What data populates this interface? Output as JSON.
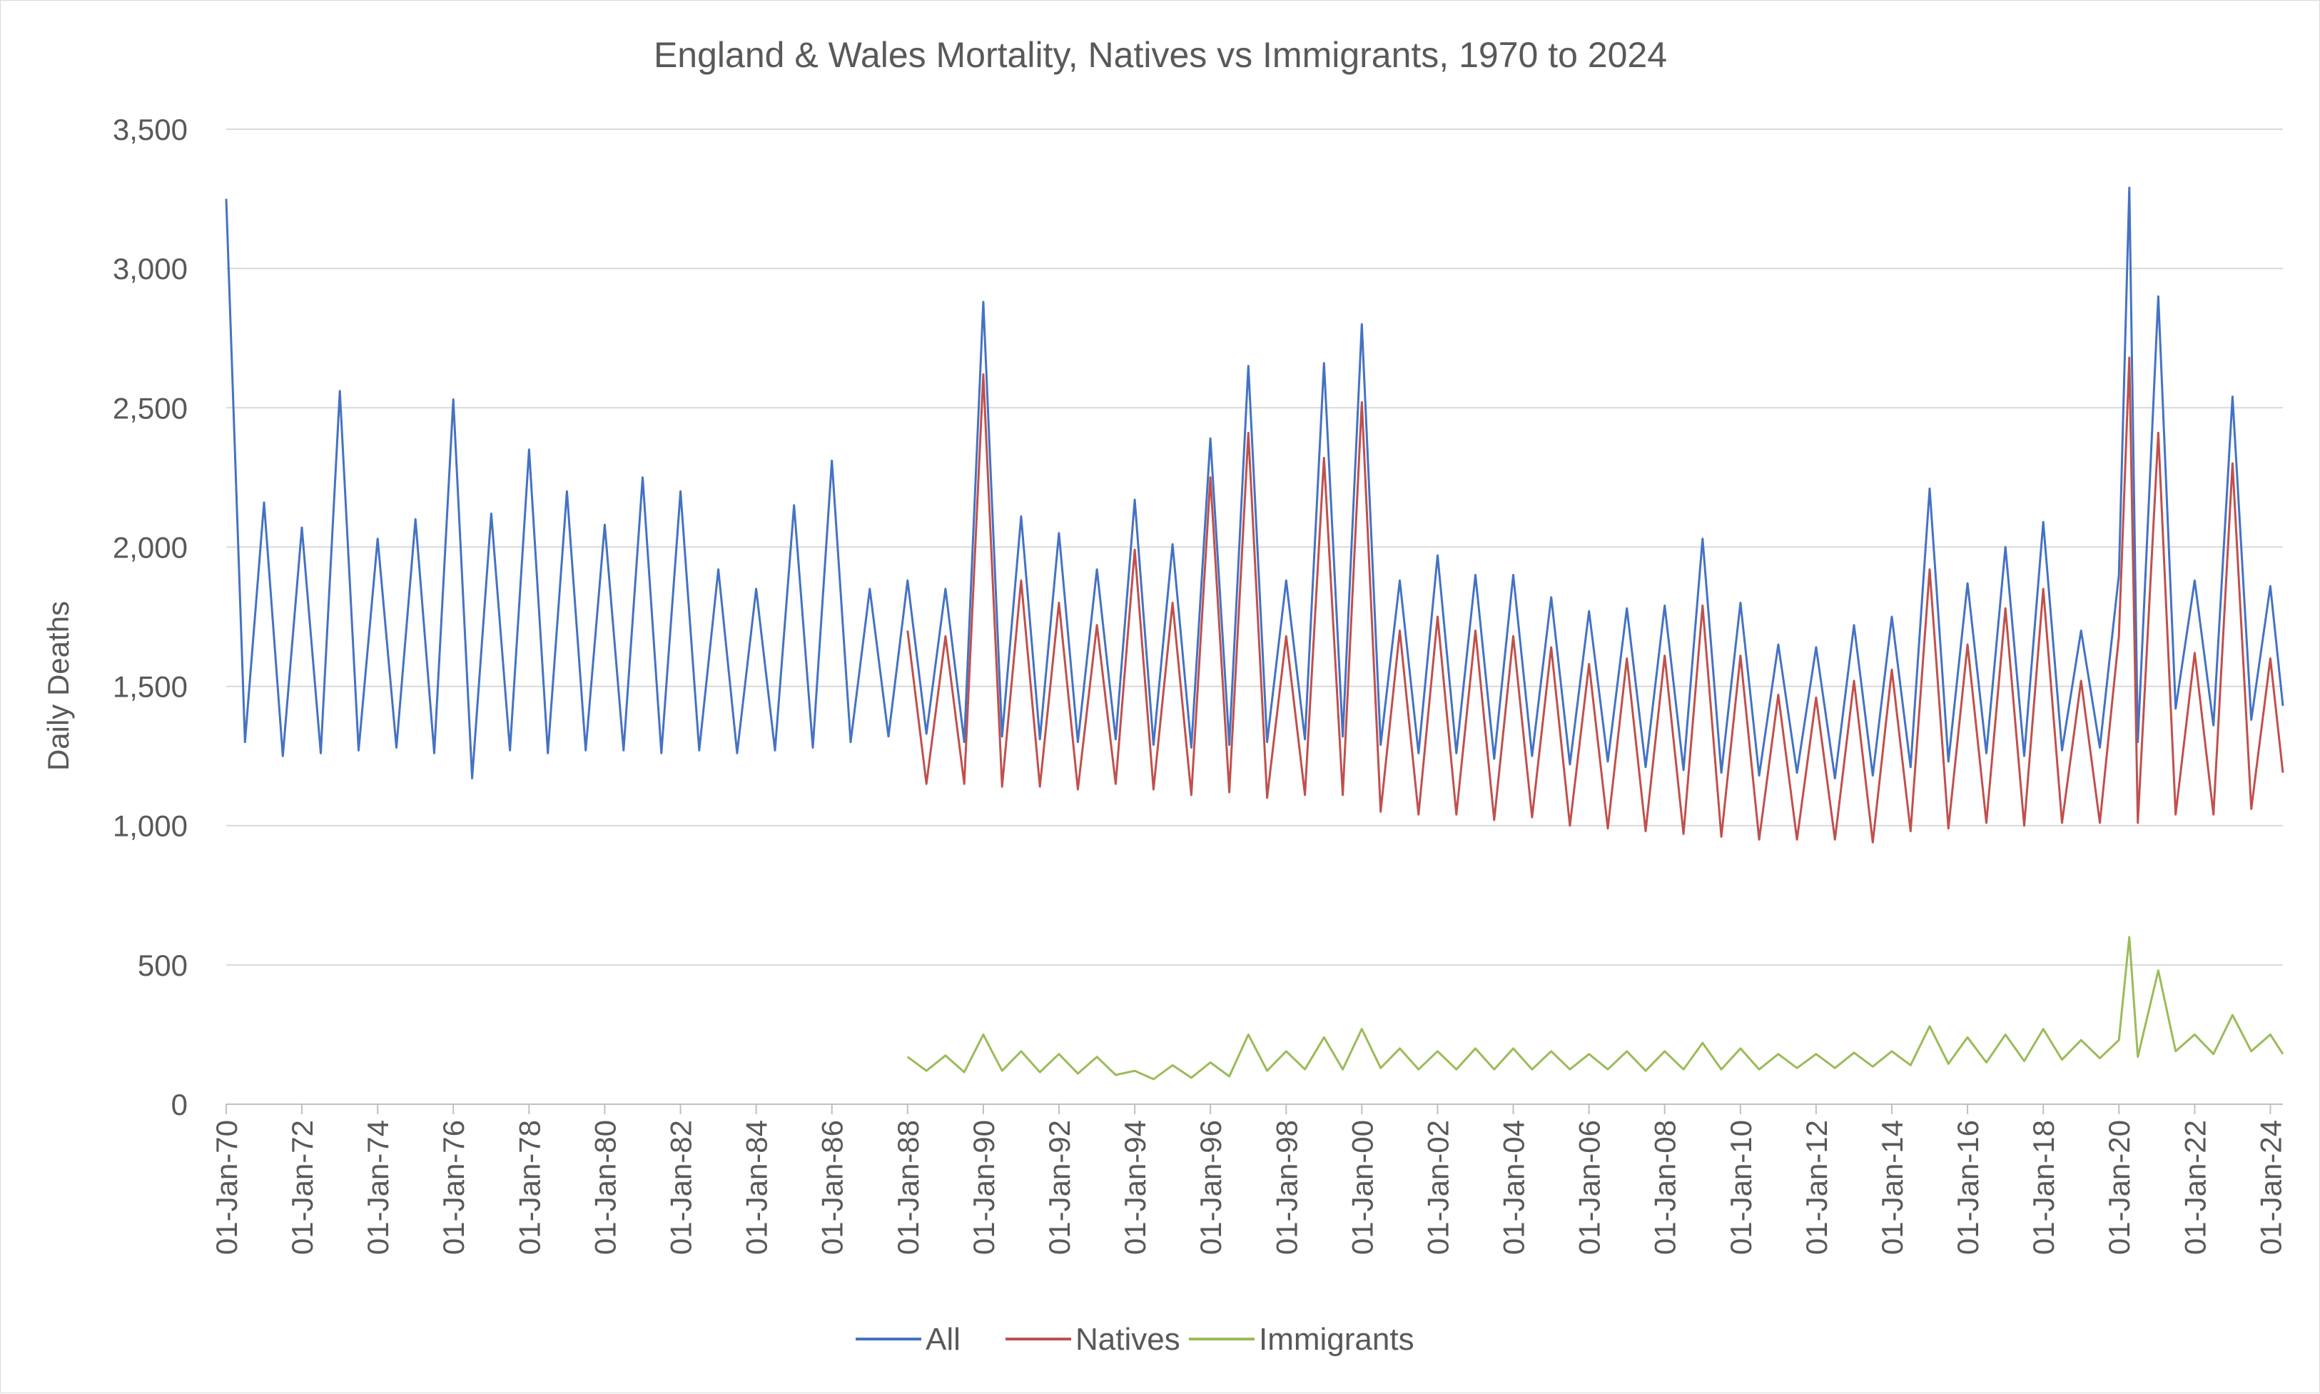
{
  "chart_data": {
    "type": "line",
    "title": "England & Wales Mortality, Natives vs Immigrants, 1970 to 2024",
    "ylabel": "Daily Deaths",
    "xlabel": "",
    "x_range": [
      "1970-01-01",
      "2024-05-01"
    ],
    "ylim": [
      0,
      3500
    ],
    "y_ticks": [
      0,
      500,
      1000,
      1500,
      2000,
      2500,
      3000,
      3500
    ],
    "y_tick_labels": [
      "0",
      "500",
      "1,000",
      "1,500",
      "2,000",
      "2,500",
      "3,000",
      "3,500"
    ],
    "x_tick_labels": [
      "01-Jan-70",
      "01-Jan-72",
      "01-Jan-74",
      "01-Jan-76",
      "01-Jan-78",
      "01-Jan-80",
      "01-Jan-82",
      "01-Jan-84",
      "01-Jan-86",
      "01-Jan-88",
      "01-Jan-90",
      "01-Jan-92",
      "01-Jan-94",
      "01-Jan-96",
      "01-Jan-98",
      "01-Jan-00",
      "01-Jan-02",
      "01-Jan-04",
      "01-Jan-06",
      "01-Jan-08",
      "01-Jan-10",
      "01-Jan-12",
      "01-Jan-14",
      "01-Jan-16",
      "01-Jan-18",
      "01-Jan-20",
      "01-Jan-22",
      "01-Jan-24"
    ],
    "grid": true,
    "legend_position": "bottom",
    "series": [
      {
        "name": "All",
        "color": "#4472c4",
        "x": [
          "1970-01-01",
          "1970-07-01",
          "1971-01-01",
          "1971-07-01",
          "1972-01-01",
          "1972-07-01",
          "1973-01-01",
          "1973-07-01",
          "1974-01-01",
          "1974-07-01",
          "1975-01-01",
          "1975-07-01",
          "1976-01-01",
          "1976-07-01",
          "1977-01-01",
          "1977-07-01",
          "1978-01-01",
          "1978-07-01",
          "1979-01-01",
          "1979-07-01",
          "1980-01-01",
          "1980-07-01",
          "1981-01-01",
          "1981-07-01",
          "1982-01-01",
          "1982-07-01",
          "1983-01-01",
          "1983-07-01",
          "1984-01-01",
          "1984-07-01",
          "1985-01-01",
          "1985-07-01",
          "1986-01-01",
          "1986-07-01",
          "1987-01-01",
          "1987-07-01",
          "1988-01-01",
          "1988-07-01",
          "1989-01-01",
          "1989-07-01",
          "1990-01-01",
          "1990-07-01",
          "1991-01-01",
          "1991-07-01",
          "1992-01-01",
          "1992-07-01",
          "1993-01-01",
          "1993-07-01",
          "1994-01-01",
          "1994-07-01",
          "1995-01-01",
          "1995-07-01",
          "1996-01-01",
          "1996-07-01",
          "1997-01-01",
          "1997-07-01",
          "1998-01-01",
          "1998-07-01",
          "1999-01-01",
          "1999-07-01",
          "2000-01-01",
          "2000-07-01",
          "2001-01-01",
          "2001-07-01",
          "2002-01-01",
          "2002-07-01",
          "2003-01-01",
          "2003-07-01",
          "2004-01-01",
          "2004-07-01",
          "2005-01-01",
          "2005-07-01",
          "2006-01-01",
          "2006-07-01",
          "2007-01-01",
          "2007-07-01",
          "2008-01-01",
          "2008-07-01",
          "2009-01-01",
          "2009-07-01",
          "2010-01-01",
          "2010-07-01",
          "2011-01-01",
          "2011-07-01",
          "2012-01-01",
          "2012-07-01",
          "2013-01-01",
          "2013-07-01",
          "2014-01-01",
          "2014-07-01",
          "2015-01-01",
          "2015-07-01",
          "2016-01-01",
          "2016-07-01",
          "2017-01-01",
          "2017-07-01",
          "2018-01-01",
          "2018-07-01",
          "2019-01-01",
          "2019-07-01",
          "2020-01-01",
          "2020-04-10",
          "2020-07-01",
          "2021-01-15",
          "2021-07-01",
          "2022-01-01",
          "2022-07-01",
          "2023-01-01",
          "2023-07-01",
          "2024-01-01",
          "2024-05-01"
        ],
        "y": [
          3250,
          1300,
          2160,
          1250,
          2070,
          1260,
          2560,
          1270,
          2030,
          1280,
          2100,
          1260,
          2530,
          1170,
          2120,
          1270,
          2350,
          1260,
          2200,
          1270,
          2080,
          1270,
          2250,
          1260,
          2200,
          1270,
          1920,
          1260,
          1850,
          1270,
          2150,
          1280,
          2310,
          1300,
          1850,
          1320,
          1880,
          1330,
          1850,
          1300,
          2880,
          1320,
          2110,
          1310,
          2050,
          1300,
          1920,
          1310,
          2170,
          1290,
          2010,
          1280,
          2390,
          1290,
          2650,
          1300,
          1880,
          1310,
          2660,
          1320,
          2800,
          1290,
          1880,
          1260,
          1970,
          1260,
          1900,
          1240,
          1900,
          1250,
          1820,
          1220,
          1770,
          1230,
          1780,
          1210,
          1790,
          1200,
          2030,
          1190,
          1800,
          1180,
          1650,
          1190,
          1640,
          1170,
          1720,
          1180,
          1750,
          1210,
          2210,
          1230,
          1870,
          1260,
          2000,
          1250,
          2090,
          1270,
          1700,
          1280,
          1900,
          3290,
          1300,
          2900,
          1420,
          1880,
          1360,
          2540,
          1380,
          1860,
          1430
        ]
      },
      {
        "name": "Natives",
        "color": "#c0504d",
        "x": [
          "1988-01-01",
          "1988-07-01",
          "1989-01-01",
          "1989-07-01",
          "1990-01-01",
          "1990-07-01",
          "1991-01-01",
          "1991-07-01",
          "1992-01-01",
          "1992-07-01",
          "1993-01-01",
          "1993-07-01",
          "1994-01-01",
          "1994-07-01",
          "1995-01-01",
          "1995-07-01",
          "1996-01-01",
          "1996-07-01",
          "1997-01-01",
          "1997-07-01",
          "1998-01-01",
          "1998-07-01",
          "1999-01-01",
          "1999-07-01",
          "2000-01-01",
          "2000-07-01",
          "2001-01-01",
          "2001-07-01",
          "2002-01-01",
          "2002-07-01",
          "2003-01-01",
          "2003-07-01",
          "2004-01-01",
          "2004-07-01",
          "2005-01-01",
          "2005-07-01",
          "2006-01-01",
          "2006-07-01",
          "2007-01-01",
          "2007-07-01",
          "2008-01-01",
          "2008-07-01",
          "2009-01-01",
          "2009-07-01",
          "2010-01-01",
          "2010-07-01",
          "2011-01-01",
          "2011-07-01",
          "2012-01-01",
          "2012-07-01",
          "2013-01-01",
          "2013-07-01",
          "2014-01-01",
          "2014-07-01",
          "2015-01-01",
          "2015-07-01",
          "2016-01-01",
          "2016-07-01",
          "2017-01-01",
          "2017-07-01",
          "2018-01-01",
          "2018-07-01",
          "2019-01-01",
          "2019-07-01",
          "2020-01-01",
          "2020-04-10",
          "2020-07-01",
          "2021-01-15",
          "2021-07-01",
          "2022-01-01",
          "2022-07-01",
          "2023-01-01",
          "2023-07-01",
          "2024-01-01",
          "2024-05-01"
        ],
        "y": [
          1700,
          1150,
          1680,
          1150,
          2620,
          1140,
          1880,
          1140,
          1800,
          1130,
          1720,
          1150,
          1990,
          1130,
          1800,
          1110,
          2250,
          1120,
          2410,
          1100,
          1680,
          1110,
          2320,
          1110,
          2520,
          1050,
          1700,
          1040,
          1750,
          1040,
          1700,
          1020,
          1680,
          1030,
          1640,
          1000,
          1580,
          990,
          1600,
          980,
          1610,
          970,
          1790,
          960,
          1610,
          950,
          1470,
          950,
          1460,
          950,
          1520,
          940,
          1560,
          980,
          1920,
          990,
          1650,
          1010,
          1780,
          1000,
          1850,
          1010,
          1520,
          1010,
          1680,
          2680,
          1010,
          2410,
          1040,
          1620,
          1040,
          2300,
          1060,
          1600,
          1190
        ]
      },
      {
        "name": "Immigrants",
        "color": "#9bbb59",
        "x": [
          "1988-01-01",
          "1988-07-01",
          "1989-01-01",
          "1989-07-01",
          "1990-01-01",
          "1990-07-01",
          "1991-01-01",
          "1991-07-01",
          "1992-01-01",
          "1992-07-01",
          "1993-01-01",
          "1993-07-01",
          "1994-01-01",
          "1994-07-01",
          "1995-01-01",
          "1995-07-01",
          "1996-01-01",
          "1996-07-01",
          "1997-01-01",
          "1997-07-01",
          "1998-01-01",
          "1998-07-01",
          "1999-01-01",
          "1999-07-01",
          "2000-01-01",
          "2000-07-01",
          "2001-01-01",
          "2001-07-01",
          "2002-01-01",
          "2002-07-01",
          "2003-01-01",
          "2003-07-01",
          "2004-01-01",
          "2004-07-01",
          "2005-01-01",
          "2005-07-01",
          "2006-01-01",
          "2006-07-01",
          "2007-01-01",
          "2007-07-01",
          "2008-01-01",
          "2008-07-01",
          "2009-01-01",
          "2009-07-01",
          "2010-01-01",
          "2010-07-01",
          "2011-01-01",
          "2011-07-01",
          "2012-01-01",
          "2012-07-01",
          "2013-01-01",
          "2013-07-01",
          "2014-01-01",
          "2014-07-01",
          "2015-01-01",
          "2015-07-01",
          "2016-01-01",
          "2016-07-01",
          "2017-01-01",
          "2017-07-01",
          "2018-01-01",
          "2018-07-01",
          "2019-01-01",
          "2019-07-01",
          "2020-01-01",
          "2020-04-10",
          "2020-07-01",
          "2021-01-15",
          "2021-07-01",
          "2022-01-01",
          "2022-07-01",
          "2023-01-01",
          "2023-07-01",
          "2024-01-01",
          "2024-05-01"
        ],
        "y": [
          170,
          120,
          175,
          115,
          250,
          120,
          190,
          115,
          180,
          110,
          170,
          105,
          120,
          90,
          140,
          95,
          150,
          100,
          250,
          120,
          190,
          125,
          240,
          125,
          270,
          130,
          200,
          125,
          190,
          125,
          200,
          125,
          200,
          125,
          190,
          125,
          180,
          125,
          190,
          120,
          190,
          125,
          220,
          125,
          200,
          125,
          180,
          130,
          180,
          130,
          185,
          135,
          190,
          140,
          280,
          145,
          240,
          150,
          250,
          155,
          270,
          160,
          230,
          165,
          230,
          600,
          170,
          480,
          190,
          250,
          180,
          320,
          190,
          250,
          180
        ]
      }
    ]
  }
}
